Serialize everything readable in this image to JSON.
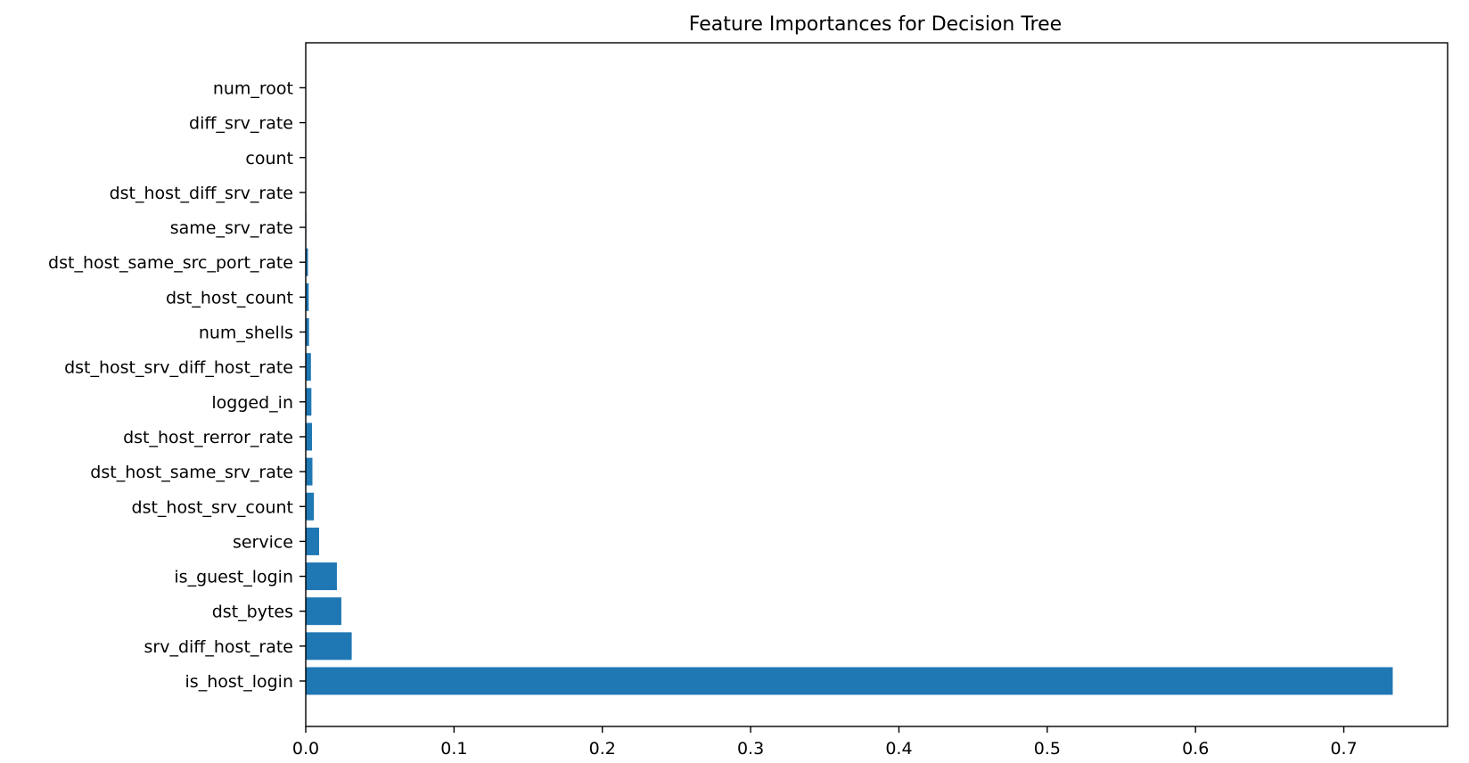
{
  "chart_data": {
    "type": "bar",
    "orientation": "horizontal",
    "title": "Feature Importances for Decision Tree",
    "xlabel": "",
    "ylabel": "",
    "categories": [
      "is_host_login",
      "srv_diff_host_rate",
      "dst_bytes",
      "is_guest_login",
      "service",
      "dst_host_srv_count",
      "dst_host_same_srv_rate",
      "dst_host_rerror_rate",
      "logged_in",
      "dst_host_srv_diff_host_rate",
      "num_shells",
      "dst_host_count",
      "dst_host_same_src_port_rate",
      "same_srv_rate",
      "dst_host_diff_srv_rate",
      "count",
      "diff_srv_rate",
      "num_root"
    ],
    "values": [
      0.733,
      0.031,
      0.024,
      0.021,
      0.009,
      0.0055,
      0.0045,
      0.0042,
      0.0038,
      0.0035,
      0.0022,
      0.002,
      0.0015,
      0.0004,
      0.0003,
      0.0002,
      0.0001,
      0.0
    ],
    "xlim": [
      0,
      0.77
    ],
    "xticks": [
      0.0,
      0.1,
      0.2,
      0.3,
      0.4,
      0.5,
      0.6,
      0.7
    ],
    "xtick_labels": [
      "0.0",
      "0.1",
      "0.2",
      "0.3",
      "0.4",
      "0.5",
      "0.6",
      "0.7"
    ],
    "grid": false,
    "legend": false,
    "bar_color": "#1f77b4"
  }
}
